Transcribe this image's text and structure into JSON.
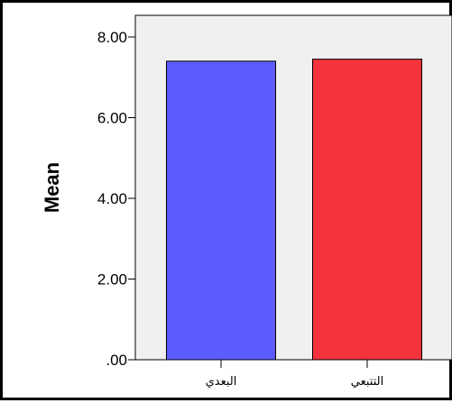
{
  "chart_data": {
    "type": "bar",
    "title": "",
    "xlabel": "",
    "ylabel": "Mean",
    "ylim": [
      0,
      8
    ],
    "yticks": [
      ".00",
      "2.00",
      "4.00",
      "6.00",
      "8.00"
    ],
    "ytick_values": [
      0,
      2,
      4,
      6,
      8
    ],
    "categories": [
      "البعدي",
      "التتبعي"
    ],
    "values": [
      7.4,
      7.45
    ],
    "colors": [
      "#5c5cff",
      "#f4333d"
    ],
    "plot_background": "#f0f0f0",
    "grid": false,
    "legend": "none"
  }
}
